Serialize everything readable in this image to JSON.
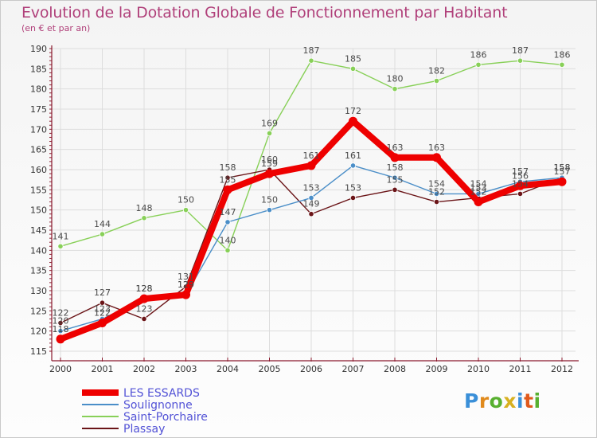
{
  "header": {
    "title": "Evolution de la Dotation Globale de Fonctionnement par Habitant",
    "subtitle": "(en € et par an)"
  },
  "colors": {
    "title": "#b0407a",
    "axis": "#8b1a2e",
    "grid": "#dddddd",
    "legend_text": "#5252d6"
  },
  "chart_data": {
    "type": "line",
    "title": "Evolution de la Dotation Globale de Fonctionnement par Habitant",
    "subtitle": "(en € et par an)",
    "xlabel": "",
    "ylabel": "",
    "x": [
      "2000",
      "2001",
      "2002",
      "2003",
      "2004",
      "2005",
      "2006",
      "2007",
      "2008",
      "2009",
      "2010",
      "2011",
      "2012"
    ],
    "ylim": [
      115,
      190
    ],
    "yticks": [
      115,
      120,
      125,
      130,
      135,
      140,
      145,
      150,
      155,
      160,
      165,
      170,
      175,
      180,
      185,
      190
    ],
    "grid": "horizontal",
    "legend_position": "bottom-left",
    "series": [
      {
        "name": "Saint-Porchaire",
        "color": "#88d058",
        "values": [
          141,
          144,
          148,
          150,
          140,
          169,
          187,
          185,
          180,
          182,
          186,
          187,
          186
        ]
      },
      {
        "name": "Plassay",
        "color": "#6b1518",
        "values": [
          122,
          127,
          123,
          131,
          158,
          160,
          149,
          153,
          155,
          152,
          153,
          154,
          158
        ]
      },
      {
        "name": "Soulignonne",
        "color": "#4a8ec8",
        "values": [
          120,
          123,
          128,
          129,
          147,
          150,
          153,
          161,
          158,
          154,
          154,
          157,
          158
        ]
      },
      {
        "name": "LES ESSARDS",
        "color": "#ee0000",
        "values": [
          118,
          122,
          128,
          129,
          155,
          159,
          161,
          172,
          163,
          163,
          152,
          156,
          157
        ]
      }
    ],
    "legend": [
      "LES ESSARDS",
      "Soulignonne",
      "Saint-Porchaire",
      "Plassay"
    ]
  },
  "logo": {
    "letters": [
      "P",
      "r",
      "o",
      "x",
      "i",
      "t",
      "i"
    ],
    "colors": [
      "#3a8fd8",
      "#e08a1c",
      "#58b030",
      "#d8b020",
      "#3a8fd8",
      "#e05a1c",
      "#58b030"
    ]
  }
}
